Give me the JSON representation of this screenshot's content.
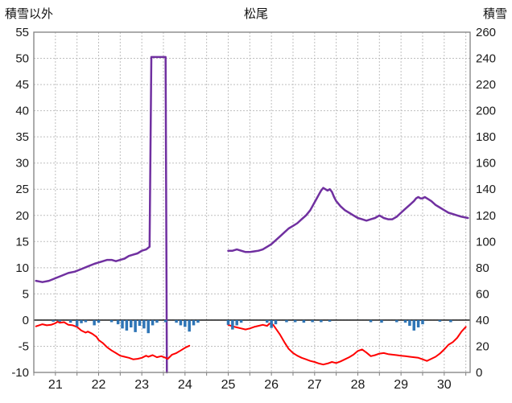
{
  "header": {
    "left_axis_title": "積雪以外",
    "title": "松尾",
    "right_axis_title": "積雪"
  },
  "chart_data": {
    "type": "line",
    "title": "松尾",
    "left_axis": {
      "label": "積雪以外",
      "min": -10,
      "max": 55,
      "step": 5
    },
    "right_axis": {
      "label": "積雪",
      "min": 0,
      "max": 260,
      "step": 20
    },
    "x_axis": {
      "min": 20.5,
      "max": 30.6,
      "ticks": [
        21,
        22,
        23,
        24,
        25,
        26,
        27,
        28,
        29,
        30
      ],
      "minor_step": 0.5
    },
    "grid": {
      "on": true,
      "color": "#bfbfbf",
      "border_color": "#7f7f7f",
      "zero_line_color": "#000000"
    },
    "legend": {
      "position": "none"
    },
    "series": [
      {
        "name": "snow-depth",
        "style": "line",
        "axis": "right",
        "color": "#7030A0",
        "width": 2.5,
        "segments": [
          [
            [
              20.55,
              70
            ],
            [
              20.7,
              69
            ],
            [
              20.85,
              70
            ],
            [
              21.0,
              72
            ],
            [
              21.15,
              74
            ],
            [
              21.3,
              76
            ],
            [
              21.45,
              77
            ],
            [
              21.6,
              79
            ],
            [
              21.75,
              81
            ],
            [
              21.9,
              83
            ],
            [
              22.0,
              84
            ],
            [
              22.1,
              85
            ],
            [
              22.2,
              86
            ],
            [
              22.3,
              86
            ],
            [
              22.4,
              85
            ],
            [
              22.5,
              86
            ],
            [
              22.6,
              87
            ],
            [
              22.7,
              89
            ],
            [
              22.8,
              90
            ],
            [
              22.9,
              91
            ],
            [
              23.0,
              93
            ],
            [
              23.1,
              94
            ],
            [
              23.18,
              96
            ],
            [
              23.22,
              241
            ],
            [
              23.55,
              241
            ],
            [
              23.58,
              0
            ]
          ],
          [
            [
              25.0,
              93
            ],
            [
              25.1,
              93
            ],
            [
              25.2,
              94
            ],
            [
              25.3,
              93
            ],
            [
              25.4,
              92
            ],
            [
              25.5,
              92
            ],
            [
              25.6,
              92.5
            ],
            [
              25.7,
              93
            ],
            [
              25.8,
              94
            ],
            [
              25.9,
              96
            ],
            [
              26.0,
              98
            ],
            [
              26.1,
              101
            ],
            [
              26.2,
              104
            ],
            [
              26.3,
              107
            ],
            [
              26.4,
              110
            ],
            [
              26.5,
              112
            ],
            [
              26.6,
              114
            ],
            [
              26.7,
              117
            ],
            [
              26.8,
              120
            ],
            [
              26.9,
              124
            ],
            [
              27.0,
              130
            ],
            [
              27.05,
              133
            ],
            [
              27.1,
              136
            ],
            [
              27.15,
              139
            ],
            [
              27.2,
              141
            ],
            [
              27.25,
              140
            ],
            [
              27.3,
              139
            ],
            [
              27.35,
              140
            ],
            [
              27.4,
              138
            ],
            [
              27.45,
              134
            ],
            [
              27.5,
              131
            ],
            [
              27.6,
              127
            ],
            [
              27.7,
              124
            ],
            [
              27.8,
              122
            ],
            [
              27.9,
              120
            ],
            [
              28.0,
              118
            ],
            [
              28.1,
              117
            ],
            [
              28.2,
              116
            ],
            [
              28.3,
              117
            ],
            [
              28.4,
              118
            ],
            [
              28.5,
              120
            ],
            [
              28.55,
              119
            ],
            [
              28.6,
              118
            ],
            [
              28.7,
              117
            ],
            [
              28.8,
              117
            ],
            [
              28.9,
              119
            ],
            [
              29.0,
              122
            ],
            [
              29.1,
              125
            ],
            [
              29.2,
              128
            ],
            [
              29.3,
              131
            ],
            [
              29.35,
              133
            ],
            [
              29.4,
              134
            ],
            [
              29.45,
              133
            ],
            [
              29.5,
              133
            ],
            [
              29.55,
              134
            ],
            [
              29.6,
              133
            ],
            [
              29.7,
              131
            ],
            [
              29.8,
              128
            ],
            [
              29.9,
              126
            ],
            [
              30.0,
              124
            ],
            [
              30.1,
              122
            ],
            [
              30.2,
              121
            ],
            [
              30.3,
              120
            ],
            [
              30.4,
              119
            ],
            [
              30.55,
              118
            ]
          ]
        ]
      },
      {
        "name": "temperature",
        "style": "line",
        "axis": "left",
        "color": "#FF0000",
        "width": 2,
        "segments": [
          [
            [
              20.55,
              -1.2
            ],
            [
              20.7,
              -0.8
            ],
            [
              20.8,
              -1.0
            ],
            [
              20.9,
              -0.9
            ],
            [
              21.0,
              -0.6
            ],
            [
              21.05,
              -0.3
            ],
            [
              21.1,
              -0.5
            ],
            [
              21.2,
              -0.4
            ],
            [
              21.3,
              -0.9
            ],
            [
              21.4,
              -1.0
            ],
            [
              21.5,
              -1.3
            ],
            [
              21.6,
              -2.0
            ],
            [
              21.7,
              -2.4
            ],
            [
              21.75,
              -2.2
            ],
            [
              21.85,
              -2.6
            ],
            [
              21.95,
              -3.2
            ],
            [
              22.0,
              -3.8
            ],
            [
              22.1,
              -4.4
            ],
            [
              22.2,
              -5.2
            ],
            [
              22.3,
              -5.8
            ],
            [
              22.4,
              -6.3
            ],
            [
              22.5,
              -6.8
            ],
            [
              22.6,
              -7.0
            ],
            [
              22.7,
              -7.2
            ],
            [
              22.8,
              -7.5
            ],
            [
              22.9,
              -7.4
            ],
            [
              23.0,
              -7.2
            ],
            [
              23.1,
              -6.8
            ],
            [
              23.15,
              -7.0
            ],
            [
              23.25,
              -6.7
            ],
            [
              23.35,
              -7.1
            ],
            [
              23.45,
              -6.9
            ],
            [
              23.55,
              -7.2
            ],
            [
              23.6,
              -7.4
            ],
            [
              23.7,
              -6.6
            ],
            [
              23.8,
              -6.3
            ],
            [
              23.9,
              -5.8
            ],
            [
              24.0,
              -5.3
            ],
            [
              24.1,
              -4.9
            ]
          ],
          [
            [
              25.0,
              -0.9
            ],
            [
              25.1,
              -1.2
            ],
            [
              25.2,
              -1.4
            ],
            [
              25.3,
              -1.6
            ],
            [
              25.4,
              -1.8
            ],
            [
              25.5,
              -1.6
            ],
            [
              25.6,
              -1.3
            ],
            [
              25.7,
              -1.1
            ],
            [
              25.8,
              -0.9
            ],
            [
              25.9,
              -1.1
            ],
            [
              25.95,
              -0.7
            ],
            [
              26.0,
              -0.6
            ],
            [
              26.05,
              -1.0
            ],
            [
              26.1,
              -1.6
            ],
            [
              26.2,
              -2.8
            ],
            [
              26.3,
              -4.2
            ],
            [
              26.4,
              -5.5
            ],
            [
              26.5,
              -6.3
            ],
            [
              26.6,
              -6.8
            ],
            [
              26.7,
              -7.2
            ],
            [
              26.8,
              -7.5
            ],
            [
              26.9,
              -7.8
            ],
            [
              27.0,
              -8.0
            ],
            [
              27.1,
              -8.3
            ],
            [
              27.2,
              -8.5
            ],
            [
              27.3,
              -8.3
            ],
            [
              27.4,
              -8.0
            ],
            [
              27.5,
              -8.2
            ],
            [
              27.6,
              -7.9
            ],
            [
              27.7,
              -7.5
            ],
            [
              27.8,
              -7.1
            ],
            [
              27.9,
              -6.6
            ],
            [
              28.0,
              -5.9
            ],
            [
              28.1,
              -5.6
            ],
            [
              28.2,
              -6.2
            ],
            [
              28.3,
              -6.9
            ],
            [
              28.4,
              -6.7
            ],
            [
              28.5,
              -6.4
            ],
            [
              28.6,
              -6.3
            ],
            [
              28.7,
              -6.5
            ],
            [
              28.8,
              -6.6
            ],
            [
              28.9,
              -6.7
            ],
            [
              29.0,
              -6.8
            ],
            [
              29.1,
              -6.9
            ],
            [
              29.2,
              -7.0
            ],
            [
              29.3,
              -7.1
            ],
            [
              29.4,
              -7.2
            ],
            [
              29.5,
              -7.5
            ],
            [
              29.6,
              -7.8
            ],
            [
              29.7,
              -7.4
            ],
            [
              29.8,
              -7.0
            ],
            [
              29.9,
              -6.4
            ],
            [
              30.0,
              -5.6
            ],
            [
              30.1,
              -4.7
            ],
            [
              30.2,
              -4.2
            ],
            [
              30.3,
              -3.4
            ],
            [
              30.4,
              -2.2
            ],
            [
              30.5,
              -1.3
            ]
          ]
        ]
      },
      {
        "name": "precipitation",
        "style": "bar",
        "axis": "left",
        "color": "#2E75B6",
        "bar_width": 3.5,
        "points": [
          [
            20.95,
            -0.3
          ],
          [
            21.1,
            -0.3
          ],
          [
            21.35,
            -0.5
          ],
          [
            21.5,
            -1.2
          ],
          [
            21.6,
            -0.6
          ],
          [
            21.7,
            -0.4
          ],
          [
            21.9,
            -1.0
          ],
          [
            22.0,
            -0.5
          ],
          [
            22.3,
            -0.4
          ],
          [
            22.45,
            -0.8
          ],
          [
            22.55,
            -1.6
          ],
          [
            22.65,
            -2.0
          ],
          [
            22.75,
            -1.4
          ],
          [
            22.85,
            -2.3
          ],
          [
            22.95,
            -1.1
          ],
          [
            23.05,
            -1.6
          ],
          [
            23.15,
            -2.5
          ],
          [
            23.25,
            -1.0
          ],
          [
            23.35,
            -0.5
          ],
          [
            23.55,
            -0.4
          ],
          [
            23.8,
            -0.5
          ],
          [
            23.9,
            -1.0
          ],
          [
            24.0,
            -1.3
          ],
          [
            24.1,
            -2.2
          ],
          [
            24.2,
            -1.0
          ],
          [
            24.3,
            -0.5
          ],
          [
            25.0,
            -0.9
          ],
          [
            25.1,
            -1.8
          ],
          [
            25.2,
            -1.0
          ],
          [
            25.3,
            -0.5
          ],
          [
            25.9,
            -0.5
          ],
          [
            26.0,
            -1.5
          ],
          [
            26.1,
            -0.8
          ],
          [
            26.35,
            -0.4
          ],
          [
            26.55,
            -0.4
          ],
          [
            26.75,
            -0.5
          ],
          [
            26.95,
            -0.4
          ],
          [
            27.15,
            -0.4
          ],
          [
            27.35,
            -0.3
          ],
          [
            28.3,
            -0.4
          ],
          [
            28.55,
            -0.5
          ],
          [
            28.9,
            -0.4
          ],
          [
            29.1,
            -0.5
          ],
          [
            29.2,
            -1.1
          ],
          [
            29.3,
            -2.0
          ],
          [
            29.4,
            -1.4
          ],
          [
            29.5,
            -0.8
          ],
          [
            29.9,
            -0.3
          ],
          [
            30.15,
            -0.4
          ]
        ]
      }
    ]
  }
}
